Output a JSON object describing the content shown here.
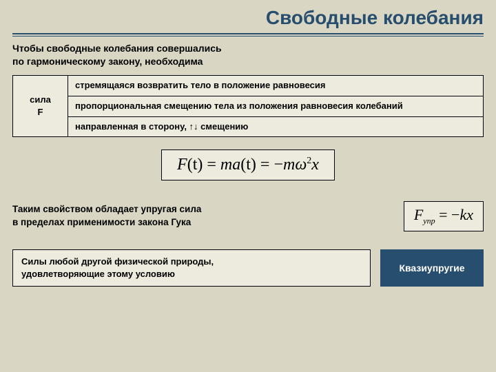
{
  "colors": {
    "background": "#d9d6c3",
    "box_bg": "#edebdd",
    "accent": "#274e6e",
    "border": "#000000",
    "text": "#000000",
    "label_text": "#ffffff"
  },
  "typography": {
    "title_fontsize": 28,
    "body_fontsize": 13,
    "equation_fontsize": 24,
    "equation_small_fontsize": 22,
    "font_family_body": "Verdana",
    "font_family_math": "Times New Roman"
  },
  "title": "Свободные колебания",
  "intro": {
    "line1": "Чтобы свободные колебания совершались",
    "line2": "по гармоническому закону, необходима"
  },
  "force": {
    "label_line1": "сила",
    "label_line2": "F",
    "rows": [
      "стремящаяся возвратить тело в положение равновесия",
      "пропорциональная смещению тела из положения равновесия колебаний",
      "направленная в сторону, ↑↓ смещению"
    ]
  },
  "equation_main": {
    "text": "F(t) = ma(t) = −mω²x",
    "parts": {
      "F": "F",
      "t1": "(t)",
      "eq": " = ",
      "m1": "m",
      "a": "a",
      "t2": "(t)",
      "eq2": " = ",
      "neg": "−",
      "m2": "m",
      "omega": "ω",
      "sq": "2",
      "x": "x"
    }
  },
  "elastic": {
    "line1": "Таким свойством обладает упругая сила",
    "line2": "в пределах применимости закона Гука"
  },
  "equation_hooke": {
    "text": "F_упр = −kx",
    "parts": {
      "F": "F",
      "sub": "упр",
      "eq": " = ",
      "neg": "−",
      "k": "k",
      "x": "x"
    }
  },
  "quasi": {
    "text_line1": "Силы любой другой физической природы,",
    "text_line2": "удовлетворяющие этому условию",
    "label": "Квазиупругие"
  }
}
